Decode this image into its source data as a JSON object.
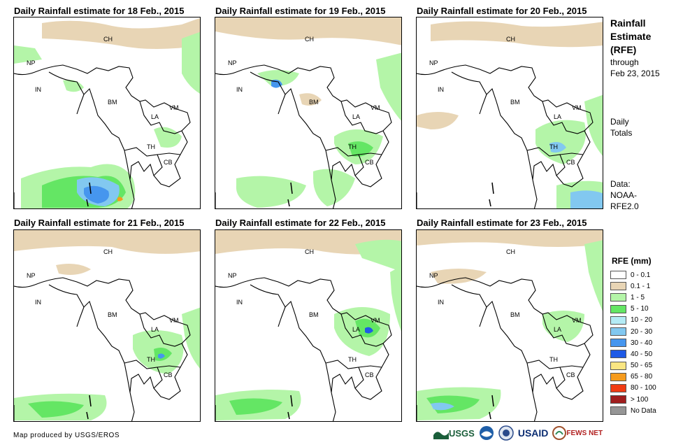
{
  "panels": [
    {
      "title": "Daily Rainfall estimate for 18 Feb., 2015"
    },
    {
      "title": "Daily Rainfall estimate for 19 Feb., 2015"
    },
    {
      "title": "Daily Rainfall estimate for 20 Feb., 2015"
    },
    {
      "title": "Daily Rainfall estimate for 21 Feb., 2015"
    },
    {
      "title": "Daily Rainfall estimate for 22 Feb., 2015"
    },
    {
      "title": "Daily Rainfall estimate for 23 Feb., 2015"
    }
  ],
  "map_labels": {
    "ch": "CH",
    "np": "NP",
    "in": "IN",
    "bm": "BM",
    "la": "LA",
    "vm": "VM",
    "th": "TH",
    "cb": "CB"
  },
  "sidebar": {
    "title_line1": "Rainfall",
    "title_line2": "Estimate",
    "title_line3": "(RFE)",
    "through": "through",
    "through_date": "Feb 23, 2015",
    "daily": "Daily",
    "totals": "Totals",
    "data_label": "Data:",
    "data_source_1": "NOAA-",
    "data_source_2": "RFE2.0"
  },
  "legend": {
    "title": "RFE (mm)",
    "items": [
      {
        "label": "0 - 0.1",
        "color": "#ffffff"
      },
      {
        "label": "0.1 - 1",
        "color": "#e8d5b5"
      },
      {
        "label": "1 - 5",
        "color": "#b4f5a8"
      },
      {
        "label": "5 - 10",
        "color": "#64e664"
      },
      {
        "label": "10 - 20",
        "color": "#b4ebf5"
      },
      {
        "label": "20 - 30",
        "color": "#82c8f0"
      },
      {
        "label": "30 - 40",
        "color": "#4696ee"
      },
      {
        "label": "40 - 50",
        "color": "#1e5ae6"
      },
      {
        "label": "50 - 65",
        "color": "#fae682"
      },
      {
        "label": "65 - 80",
        "color": "#f59b1e"
      },
      {
        "label": "80 - 100",
        "color": "#f03c14"
      },
      {
        "label": "> 100",
        "color": "#a01e1e"
      },
      {
        "label": "No Data",
        "color": "#969696"
      }
    ]
  },
  "credit": "Map produced by USGS/EROS",
  "logos": {
    "usgs": "USGS",
    "usaid": "USAID",
    "fewsnet": "FEWS NET"
  }
}
